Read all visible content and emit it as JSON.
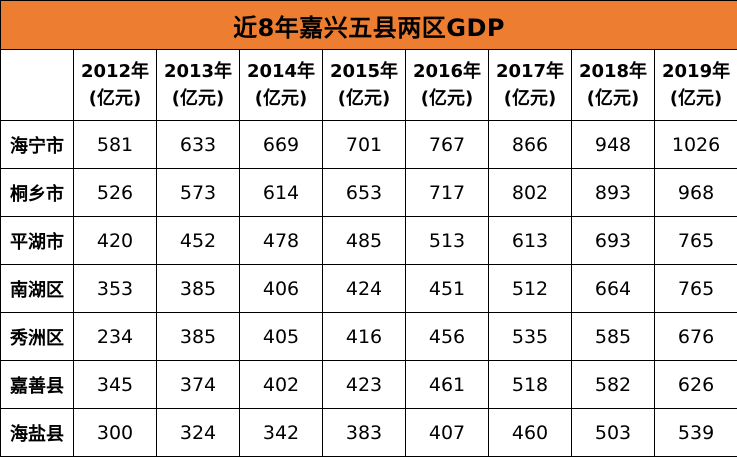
{
  "title": "近8年嘉兴五县两区GDP",
  "colors": {
    "title_bg": "#ED7D31",
    "border": "#000000",
    "background": "#FFFFFF"
  },
  "headers": [
    {
      "year": "2012年",
      "unit": "(亿元)"
    },
    {
      "year": "2013年",
      "unit": "(亿元)"
    },
    {
      "year": "2014年",
      "unit": "(亿元)"
    },
    {
      "year": "2015年",
      "unit": "(亿元)"
    },
    {
      "year": "2016年",
      "unit": "(亿元)"
    },
    {
      "year": "2017年",
      "unit": "(亿元)"
    },
    {
      "year": "2018年",
      "unit": "(亿元)"
    },
    {
      "year": "2019年",
      "unit": "(亿元)"
    }
  ],
  "rows": [
    {
      "label": "海宁市",
      "values": [
        "581",
        "633",
        "669",
        "701",
        "767",
        "866",
        "948",
        "1026"
      ]
    },
    {
      "label": "桐乡市",
      "values": [
        "526",
        "573",
        "614",
        "653",
        "717",
        "802",
        "893",
        "968"
      ]
    },
    {
      "label": "平湖市",
      "values": [
        "420",
        "452",
        "478",
        "485",
        "513",
        "613",
        "693",
        "765"
      ]
    },
    {
      "label": "南湖区",
      "values": [
        "353",
        "385",
        "406",
        "424",
        "451",
        "512",
        "664",
        "765"
      ]
    },
    {
      "label": "秀洲区",
      "values": [
        "234",
        "385",
        "405",
        "416",
        "456",
        "535",
        "585",
        "676"
      ]
    },
    {
      "label": "嘉善县",
      "values": [
        "345",
        "374",
        "402",
        "423",
        "461",
        "518",
        "582",
        "626"
      ]
    },
    {
      "label": "海盐县",
      "values": [
        "300",
        "324",
        "342",
        "383",
        "407",
        "460",
        "503",
        "539"
      ]
    }
  ]
}
